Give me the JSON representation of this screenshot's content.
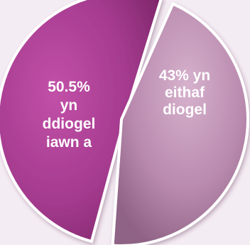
{
  "chart_data": {
    "type": "pie",
    "title": "",
    "slices": [
      {
        "label_lines": [
          "50.5%",
          "yn",
          "ddiogel",
          "iawn a"
        ],
        "value": 50.5,
        "color": "#a43a8e"
      },
      {
        "label_lines": [
          "43% yn",
          "eithaf",
          "diogel"
        ],
        "value": 43,
        "color": "#b98aae"
      }
    ],
    "legend": "none",
    "style": "3d-exploded"
  }
}
